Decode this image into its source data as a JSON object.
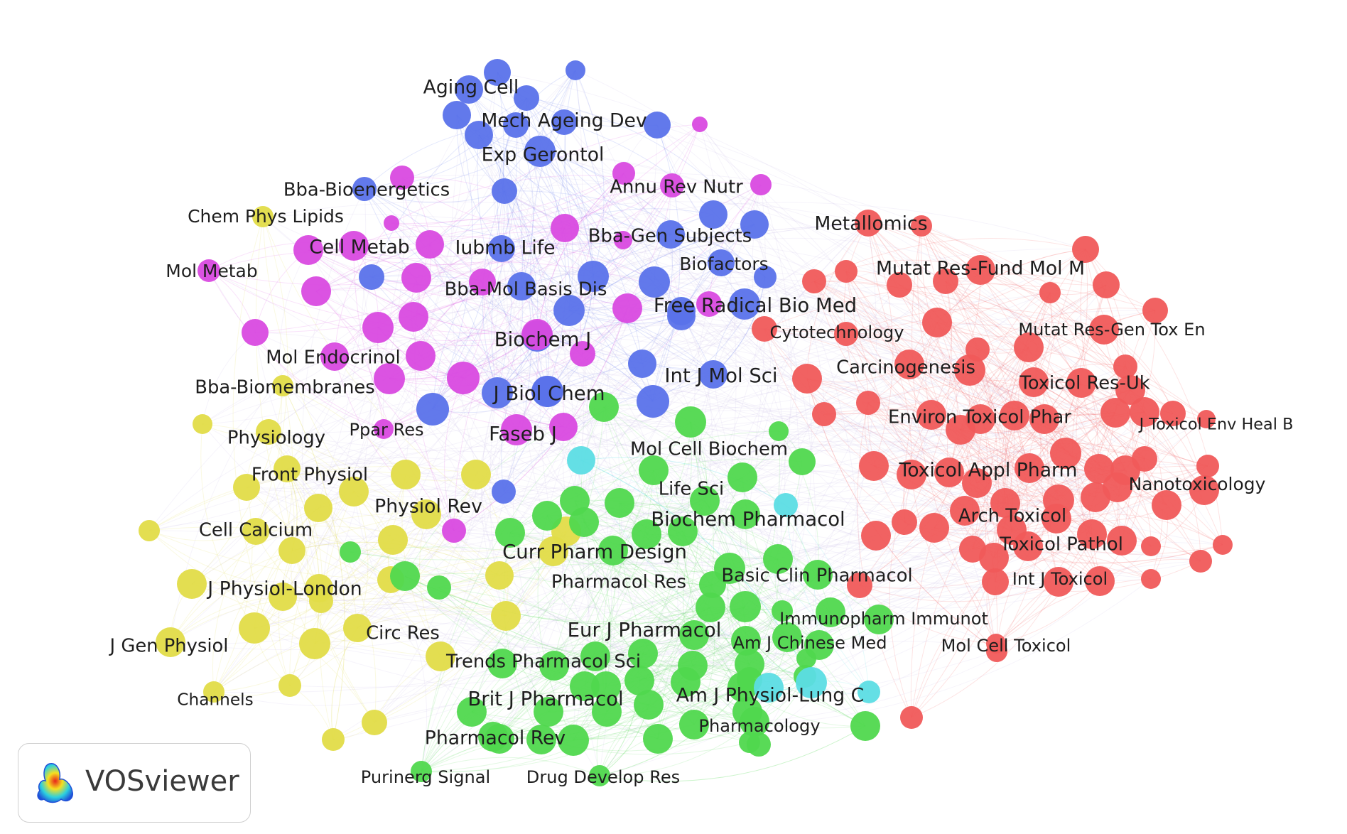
{
  "app": {
    "logo_text": "VOSviewer"
  },
  "clusters": {
    "red": {
      "color": "#f05a5a"
    },
    "green": {
      "color": "#50d84e"
    },
    "blue": {
      "color": "#5a72ea"
    },
    "yellow": {
      "color": "#e2dc48"
    },
    "purple": {
      "color": "#d94ae0"
    },
    "cyan": {
      "color": "#5cdde4"
    }
  },
  "labels": {
    "aging_cell": "Aging Cell",
    "mech_ageing_dev": "Mech Ageing Dev",
    "exp_gerontol": "Exp Gerontol",
    "bba_bioenergetics": "Bba-Bioenergetics",
    "annu_rev_nutr": "Annu Rev Nutr",
    "chem_phys_lipids": "Chem Phys Lipids",
    "metallomics": "Metallomics",
    "cell_metab": "Cell Metab",
    "iubmb_life": "Iubmb Life",
    "bba_gen_subjects": "Bba-Gen Subjects",
    "mol_metab": "Mol Metab",
    "biofactors": "Biofactors",
    "mutat_res_fund": "Mutat Res-Fund Mol M",
    "bba_mol_basis_dis": "Bba-Mol Basis Dis",
    "free_radical_bio_med": "Free Radical Bio Med",
    "cytotechnology": "Cytotechnology",
    "mutat_res_gen_tox": "Mutat Res-Gen Tox En",
    "biochem_j": "Biochem J",
    "mol_endocrinol": "Mol Endocrinol",
    "carcinogenesis": "Carcinogenesis",
    "int_j_mol_sci": "Int J Mol Sci",
    "toxicol_res_uk": "Toxicol Res-Uk",
    "bba_biomembranes": "Bba-Biomembranes",
    "j_biol_chem": "J Biol Chem",
    "environ_toxicol_phar": "Environ Toxicol Phar",
    "j_toxicol_env_heal": "J Toxicol Env Heal B",
    "ppar_res": "Ppar Res",
    "physiology": "Physiology",
    "faseb_j": "Faseb J",
    "mol_cell_biochem": "Mol Cell Biochem",
    "front_physiol": "Front Physiol",
    "toxicol_appl_pharm": "Toxicol Appl Pharm",
    "nanotoxicology": "Nanotoxicology",
    "life_sci": "Life Sci",
    "physiol_rev": "Physiol Rev",
    "arch_toxicol": "Arch Toxicol",
    "biochem_pharmacol": "Biochem Pharmacol",
    "cell_calcium": "Cell Calcium",
    "toxicol_pathol": "Toxicol Pathol",
    "curr_pharm_design": "Curr Pharm Design",
    "basic_clin_pharmacol": "Basic Clin Pharmacol",
    "pharmacol_res": "Pharmacol Res",
    "int_j_toxicol": "Int J Toxicol",
    "j_physiol_london": "J Physiol-London",
    "immunopharm_immunot": "Immunopharm Immunot",
    "eur_j_pharmacol": "Eur J Pharmacol",
    "circ_res": "Circ Res",
    "am_j_chinese_med": "Am J Chinese Med",
    "mol_cell_toxicol": "Mol Cell Toxicol",
    "j_gen_physiol": "J Gen Physiol",
    "trends_pharmacol_sci": "Trends Pharmacol Sci",
    "am_j_physiol_lung": "Am J Physiol-Lung C",
    "brit_j_pharmacol": "Brit J Pharmacol",
    "channels": "Channels",
    "pharmacology": "Pharmacology",
    "pharmacol_rev": "Pharmacol Rev",
    "purinerg_signal": "Purinerg Signal",
    "drug_develop_res": "Drug Develop Res"
  }
}
